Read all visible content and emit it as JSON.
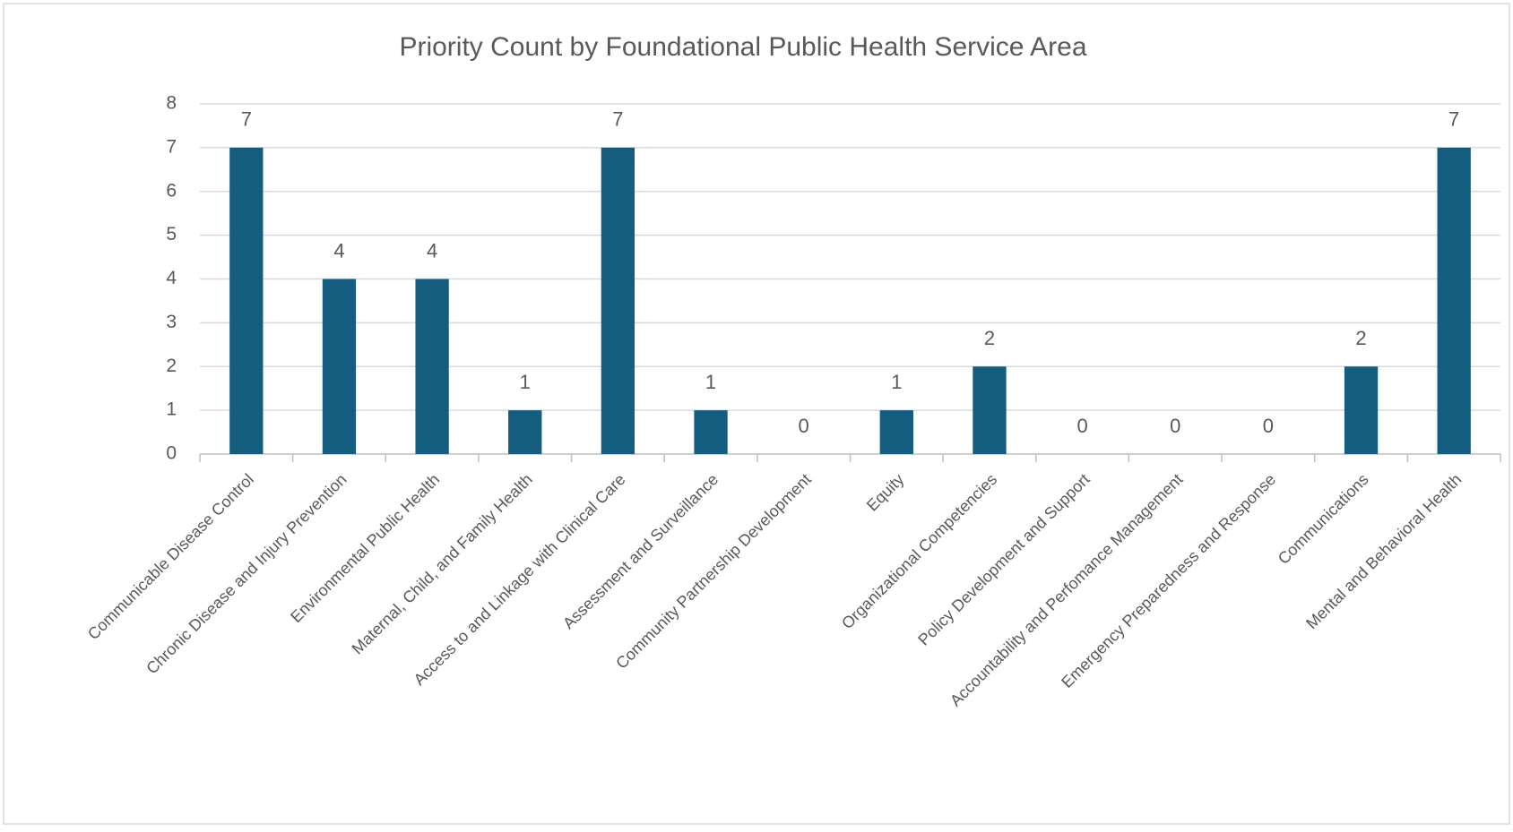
{
  "chart_data": {
    "type": "bar",
    "title": "Priority Count by Foundational Public Health Service Area",
    "categories": [
      "Communicable Disease Control",
      "Chronic Disease and Injury Prevention",
      "Environmental Public Health",
      "Maternal, Child, and Family Health",
      "Access to and Linkage with Clinical Care",
      "Assessment and Surveillance",
      "Community Partnership Development",
      "Equity",
      "Organizational Competencies",
      "Policy Development and Support",
      "Accountability and Perfomance Management",
      "Emergency Preparedness and Response",
      "Communications",
      "Mental and Behavioral Health"
    ],
    "values": [
      7,
      4,
      4,
      1,
      7,
      1,
      0,
      1,
      2,
      0,
      0,
      0,
      2,
      7
    ],
    "color": "#155d7f",
    "ylim": [
      0,
      8
    ],
    "yticks": [
      0,
      1,
      2,
      3,
      4,
      5,
      6,
      7,
      8
    ],
    "grid": true
  }
}
